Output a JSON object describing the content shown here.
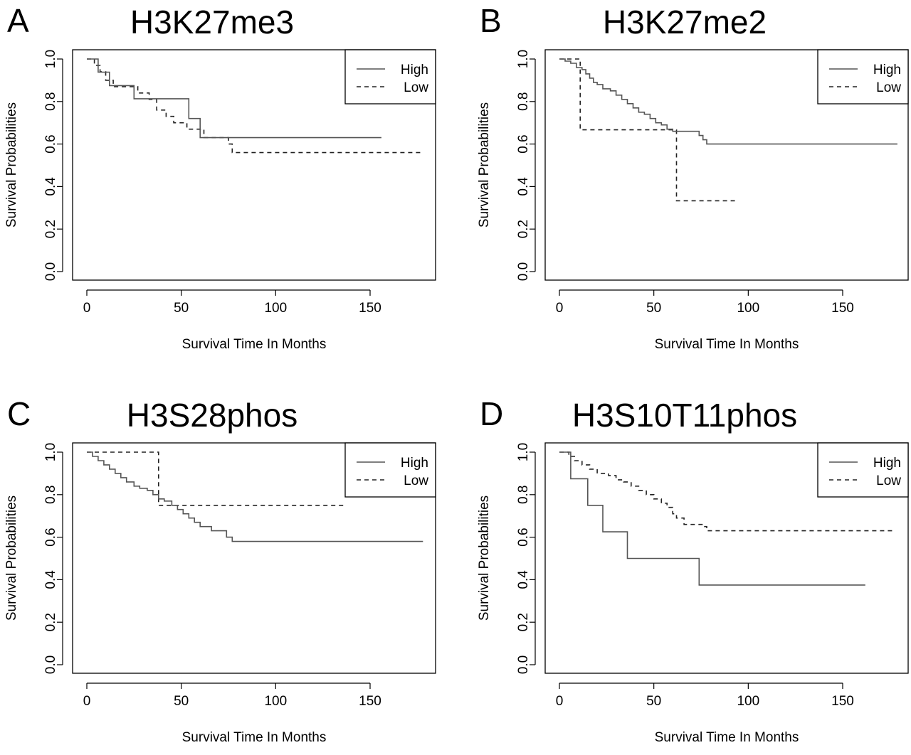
{
  "figure": {
    "panels": [
      {
        "letter": "A",
        "title": "H3K27me3"
      },
      {
        "letter": "B",
        "title": "H3K27me2"
      },
      {
        "letter": "C",
        "title": "H3S28phos"
      },
      {
        "letter": "D",
        "title": "H3S10T11phos"
      }
    ]
  },
  "chart_data": [
    {
      "type": "line",
      "subtype": "kaplan-meier step curve",
      "title": "H3K27me3",
      "xlabel": "Survival Time In Months",
      "ylabel": "Survival Probabilities",
      "xlim": [
        0,
        185
      ],
      "ylim": [
        0,
        1
      ],
      "xticks": [
        0,
        50,
        100,
        150
      ],
      "yticks": [
        0.0,
        0.2,
        0.4,
        0.6,
        0.8,
        1.0
      ],
      "legend_position": "top-right",
      "grid": false,
      "series": [
        {
          "name": "High",
          "style": "solid",
          "color": "#555555",
          "x": [
            0,
            6,
            12,
            15,
            25,
            54,
            60,
            62,
            156
          ],
          "y": [
            1.0,
            0.938,
            0.875,
            0.875,
            0.813,
            0.72,
            0.63,
            0.63,
            0.63
          ]
        },
        {
          "name": "Low",
          "style": "dashed",
          "color": "#222222",
          "x": [
            0,
            4,
            7,
            10,
            14,
            20,
            27,
            33,
            37,
            42,
            46,
            53,
            62,
            75,
            77,
            178
          ],
          "y": [
            1.0,
            0.97,
            0.94,
            0.9,
            0.87,
            0.87,
            0.84,
            0.81,
            0.76,
            0.73,
            0.7,
            0.67,
            0.63,
            0.6,
            0.56,
            0.56
          ]
        }
      ]
    },
    {
      "type": "line",
      "subtype": "kaplan-meier step curve",
      "title": "H3K27me2",
      "xlabel": "Survival Time In Months",
      "ylabel": "Survival Probabilities",
      "xlim": [
        0,
        185
      ],
      "ylim": [
        0,
        1
      ],
      "xticks": [
        0,
        50,
        100,
        150
      ],
      "yticks": [
        0.0,
        0.2,
        0.4,
        0.6,
        0.8,
        1.0
      ],
      "legend_position": "top-right",
      "grid": false,
      "series": [
        {
          "name": "High",
          "style": "solid",
          "color": "#555555",
          "x": [
            0,
            3,
            6,
            9,
            12,
            14,
            16,
            18,
            20,
            23,
            27,
            30,
            33,
            36,
            39,
            42,
            45,
            48,
            51,
            54,
            57,
            60,
            62,
            65,
            74,
            76,
            78,
            179
          ],
          "y": [
            1.0,
            0.99,
            0.98,
            0.96,
            0.95,
            0.93,
            0.91,
            0.89,
            0.88,
            0.86,
            0.85,
            0.83,
            0.81,
            0.79,
            0.77,
            0.75,
            0.74,
            0.72,
            0.7,
            0.69,
            0.67,
            0.66,
            0.66,
            0.66,
            0.64,
            0.62,
            0.6,
            0.6
          ]
        },
        {
          "name": "Low",
          "style": "dashed",
          "color": "#222222",
          "x": [
            0,
            11,
            62,
            94
          ],
          "y": [
            1.0,
            0.667,
            0.333,
            0.333
          ]
        }
      ]
    },
    {
      "type": "line",
      "subtype": "kaplan-meier step curve",
      "title": "H3S28phos",
      "xlabel": "Survival Time In Months",
      "ylabel": "Survival Probabilities",
      "xlim": [
        0,
        185
      ],
      "ylim": [
        0,
        1
      ],
      "xticks": [
        0,
        50,
        100,
        150
      ],
      "yticks": [
        0.0,
        0.2,
        0.4,
        0.6,
        0.8,
        1.0
      ],
      "legend_position": "top-right",
      "grid": false,
      "series": [
        {
          "name": "High",
          "style": "solid",
          "color": "#555555",
          "x": [
            0,
            3,
            6,
            9,
            12,
            15,
            18,
            21,
            25,
            28,
            32,
            35,
            38,
            41,
            45,
            48,
            51,
            54,
            57,
            60,
            66,
            74,
            77,
            178
          ],
          "y": [
            1.0,
            0.98,
            0.96,
            0.94,
            0.92,
            0.9,
            0.88,
            0.86,
            0.84,
            0.83,
            0.82,
            0.8,
            0.78,
            0.77,
            0.75,
            0.73,
            0.71,
            0.69,
            0.67,
            0.65,
            0.63,
            0.6,
            0.58,
            0.58
          ]
        },
        {
          "name": "Low",
          "style": "dashed",
          "color": "#222222",
          "x": [
            0,
            38,
            136
          ],
          "y": [
            1.0,
            0.75,
            0.75
          ]
        }
      ]
    },
    {
      "type": "line",
      "subtype": "kaplan-meier step curve",
      "title": "H3S10T11phos",
      "xlabel": "Survival Time In Months",
      "ylabel": "Survival Probabilities",
      "xlim": [
        0,
        185
      ],
      "ylim": [
        0,
        1
      ],
      "xticks": [
        0,
        50,
        100,
        150
      ],
      "yticks": [
        0.0,
        0.2,
        0.4,
        0.6,
        0.8,
        1.0
      ],
      "legend_position": "top-right",
      "grid": false,
      "series": [
        {
          "name": "High",
          "style": "solid",
          "color": "#555555",
          "x": [
            0,
            6,
            15,
            23,
            36,
            74,
            162
          ],
          "y": [
            1.0,
            0.875,
            0.75,
            0.625,
            0.5,
            0.375,
            0.375
          ]
        },
        {
          "name": "Low",
          "style": "dashed",
          "color": "#222222",
          "x": [
            0,
            5,
            8,
            12,
            16,
            20,
            26,
            30,
            34,
            38,
            42,
            46,
            50,
            54,
            57,
            60,
            62,
            66,
            76,
            78,
            178
          ],
          "y": [
            1.0,
            0.98,
            0.96,
            0.94,
            0.92,
            0.9,
            0.89,
            0.87,
            0.86,
            0.84,
            0.82,
            0.8,
            0.78,
            0.76,
            0.74,
            0.71,
            0.69,
            0.66,
            0.65,
            0.63,
            0.63
          ]
        }
      ]
    }
  ]
}
